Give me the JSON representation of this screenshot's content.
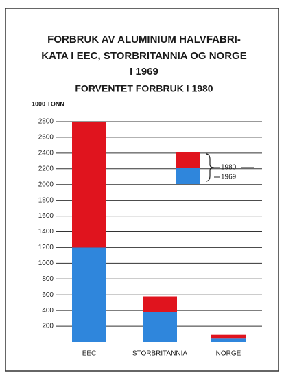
{
  "chart_data": {
    "type": "bar",
    "stacked": true,
    "title": [
      "FORBRUK AV ALUMINIUM HALVFABRI-",
      "KATA I EEC, STORBRITANNIA OG NORGE",
      "I 1969"
    ],
    "subtitle": "FORVENTET FORBRUK I 1980",
    "y_label": "1000 TONN",
    "categories": [
      "EEC",
      "STORBRITANNIA",
      "NORGE"
    ],
    "series": [
      {
        "name": "1969",
        "color": "#2f86dc",
        "values": [
          1200,
          380,
          50
        ]
      },
      {
        "name": "1980",
        "color": "#e0141e",
        "values": [
          1600,
          200,
          40
        ]
      }
    ],
    "ylim": [
      0,
      2800
    ],
    "yticks": [
      200,
      400,
      600,
      800,
      1000,
      1200,
      1400,
      1600,
      1800,
      2000,
      2200,
      2400,
      2600,
      2800
    ],
    "grid": true
  }
}
